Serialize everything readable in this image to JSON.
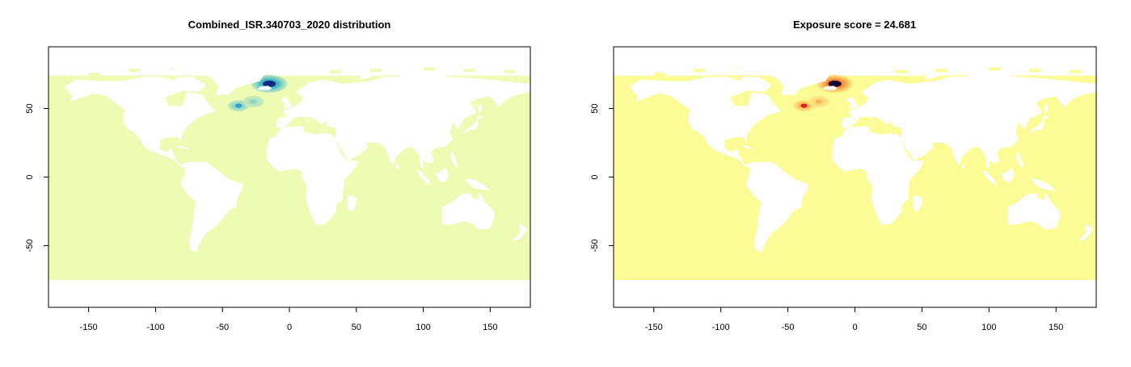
{
  "chart_data": [
    {
      "type": "heatmap",
      "title": "Combined_ISR.340703_2020 distribution",
      "xlabel": "",
      "ylabel": "",
      "xlim": [
        -180,
        180
      ],
      "ylim": [
        -95,
        95
      ],
      "xticks": [
        -150,
        -100,
        -50,
        0,
        50,
        100,
        150
      ],
      "yticks": [
        -50,
        0,
        50
      ],
      "ocean_color": "#eefbb3",
      "land_color": "#ffffff",
      "hotspots": [
        {
          "lon": -15,
          "lat": 68,
          "intensity": 1.0
        },
        {
          "lon": -38,
          "lat": 52,
          "intensity": 0.5
        },
        {
          "lon": -27,
          "lat": 55,
          "intensity": 0.25
        }
      ],
      "colormap": [
        "#eefbb3",
        "#a9dfc1",
        "#41b6c4",
        "#1d91c0",
        "#225ea8",
        "#0c2c84"
      ]
    },
    {
      "type": "heatmap",
      "title": "Exposure score = 24.681",
      "xlabel": "",
      "ylabel": "",
      "xlim": [
        -180,
        180
      ],
      "ylim": [
        -95,
        95
      ],
      "xticks": [
        -150,
        -100,
        -50,
        0,
        50,
        100,
        150
      ],
      "yticks": [
        -50,
        0,
        50
      ],
      "ocean_color": "#fcfc96",
      "land_color": "#ffffff",
      "hotspots": [
        {
          "lon": -15,
          "lat": 68,
          "intensity": 1.0
        },
        {
          "lon": -38,
          "lat": 52,
          "intensity": 0.6
        },
        {
          "lon": -27,
          "lat": 55,
          "intensity": 0.3
        }
      ],
      "colormap": [
        "#fcfc96",
        "#fed976",
        "#fd8d3c",
        "#e31a1c",
        "#800026",
        "#1a0033"
      ]
    }
  ]
}
